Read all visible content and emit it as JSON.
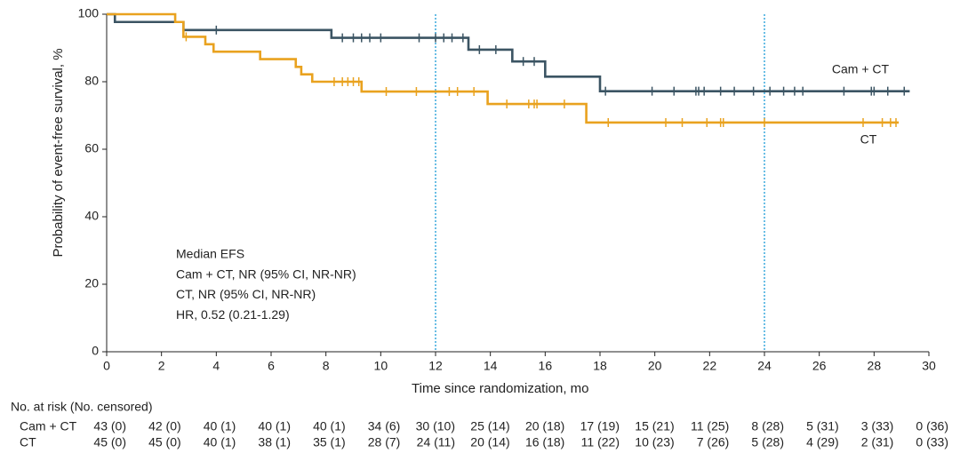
{
  "chart_data": {
    "type": "step",
    "xlabel": "Time since randomization, mo",
    "ylabel": "Probability of event-free survival, %",
    "xlim": [
      0,
      30
    ],
    "xticks": [
      0,
      2,
      4,
      6,
      8,
      10,
      12,
      14,
      16,
      18,
      20,
      22,
      24,
      26,
      28,
      30
    ],
    "ylim": [
      0,
      100
    ],
    "yticks": [
      0,
      20,
      40,
      60,
      80,
      100
    ],
    "reference_lines": [
      12,
      24
    ],
    "reference_color": "#1a9bd7",
    "series": [
      {
        "name": "Cam + CT",
        "color": "#3b5463",
        "x": [
          0,
          0.3,
          2.8,
          8.2,
          13.2,
          14.8,
          16.0,
          18.0,
          29.3
        ],
        "values": [
          100,
          97.7,
          95.3,
          93.0,
          89.5,
          86.0,
          81.5,
          77.2,
          77.2
        ],
        "censor_x": [
          4.0,
          8.6,
          9.0,
          9.3,
          9.6,
          10.0,
          11.4,
          12.0,
          12.3,
          12.6,
          13.0,
          13.6,
          14.2,
          15.2,
          15.6,
          18.2,
          19.9,
          20.7,
          21.5,
          21.6,
          21.8,
          22.4,
          22.9,
          23.6,
          24.2,
          24.7,
          25.1,
          25.4,
          26.9,
          27.9,
          28.0,
          28.5,
          29.1
        ],
        "censor_values": [
          95.3,
          93.0,
          93.0,
          93.0,
          93.0,
          93.0,
          93.0,
          93.0,
          93.0,
          93.0,
          93.0,
          89.5,
          89.5,
          86.0,
          86.0,
          77.2,
          77.2,
          77.2,
          77.2,
          77.2,
          77.2,
          77.2,
          77.2,
          77.2,
          77.2,
          77.2,
          77.2,
          77.2,
          77.2,
          77.2,
          77.2,
          77.2,
          77.2
        ]
      },
      {
        "name": "CT",
        "color": "#e9a21f",
        "x": [
          0,
          2.5,
          2.8,
          3.6,
          3.9,
          5.6,
          6.9,
          7.1,
          7.5,
          9.3,
          13.9,
          17.5,
          28.9
        ],
        "values": [
          100,
          97.7,
          93.3,
          91.1,
          88.9,
          86.7,
          84.4,
          82.2,
          80.0,
          77.1,
          73.4,
          67.9,
          67.9
        ],
        "censor_x": [
          2.9,
          8.3,
          8.6,
          8.8,
          9.0,
          9.2,
          10.2,
          11.3,
          12.5,
          12.8,
          13.4,
          14.6,
          15.4,
          15.6,
          15.7,
          16.7,
          18.3,
          20.4,
          21.0,
          21.9,
          22.4,
          22.5,
          24.0,
          27.6,
          28.3,
          28.6,
          28.8
        ],
        "censor_values": [
          93.3,
          80.0,
          80.0,
          80.0,
          80.0,
          80.0,
          77.1,
          77.1,
          77.1,
          77.1,
          77.1,
          73.4,
          73.4,
          73.4,
          73.4,
          73.4,
          67.9,
          67.9,
          67.9,
          67.9,
          67.9,
          67.9,
          67.9,
          67.9,
          67.9,
          67.9,
          67.9
        ]
      }
    ],
    "annotation": [
      "Median EFS",
      "Cam + CT, NR (95% CI, NR-NR)",
      "CT, NR (95% CI, NR-NR)",
      "HR, 0.52 (0.21-1.29)"
    ],
    "risk_table": {
      "title": "No. at risk (No. censored)",
      "rows": [
        {
          "label": "Cam + CT",
          "cells": [
            "43 (0)",
            "42 (0)",
            "40 (1)",
            "40 (1)",
            "40 (1)",
            "34 (6)",
            "30 (10)",
            "25 (14)",
            "20 (18)",
            "17 (19)",
            "15 (21)",
            "11 (25)",
            "8 (28)",
            "5 (31)",
            "3 (33)",
            "0 (36)"
          ]
        },
        {
          "label": "CT",
          "cells": [
            "45 (0)",
            "45 (0)",
            "40 (1)",
            "38 (1)",
            "35 (1)",
            "28 (7)",
            "24 (11)",
            "20 (14)",
            "16 (18)",
            "11 (22)",
            "10 (23)",
            "7 (26)",
            "5 (28)",
            "4 (29)",
            "2 (31)",
            "0 (33)"
          ]
        }
      ]
    }
  }
}
